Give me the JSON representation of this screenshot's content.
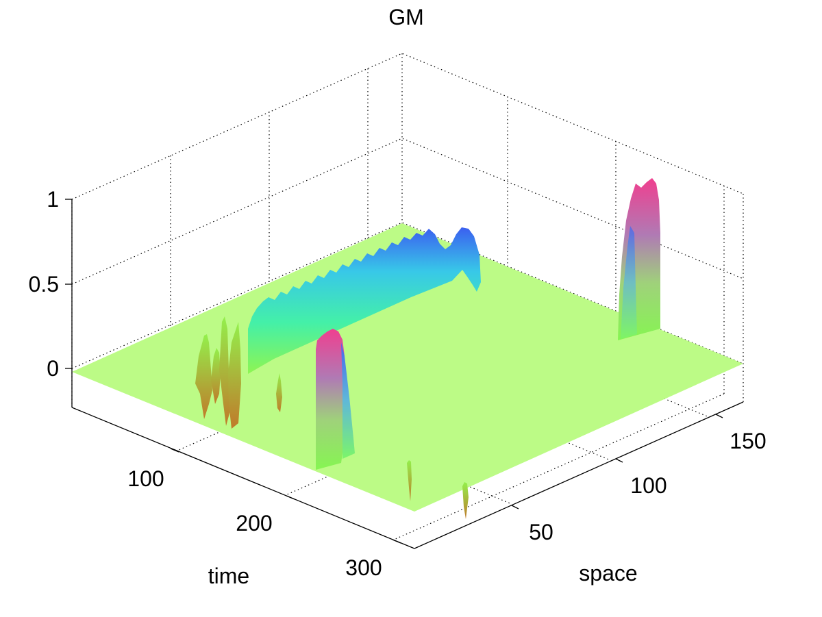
{
  "chart_data": {
    "type": "surface",
    "title": "GM",
    "xlabel": "time",
    "ylabel": "space",
    "zlabel": "",
    "xlim": [
      0,
      340
    ],
    "ylim": [
      0,
      175
    ],
    "zlim": [
      -0.25,
      1
    ],
    "x_ticks": [
      "100",
      "200",
      "300"
    ],
    "y_ticks": [
      "50",
      "100",
      "150"
    ],
    "z_ticks": [
      "0",
      "0.5",
      "1"
    ],
    "grid": true,
    "colormap": "hsv",
    "baseline_color": "#b8f985",
    "features": [
      {
        "name": "ridge",
        "x_range": [
          30,
          32
        ],
        "y_range": [
          60,
          156
        ],
        "peak": 0.77,
        "color_top": "#3b5ff0"
      },
      {
        "name": "bump",
        "x_range": [
          310,
          335
        ],
        "y_range": [
          152,
          156
        ],
        "peak": 0.96,
        "color_top": "#f03f8f"
      },
      {
        "name": "bump",
        "x_range": [
          115,
          147
        ],
        "y_range": [
          60,
          62
        ],
        "peak": 0.9,
        "color_top": "#f03f8f"
      },
      {
        "name": "spikes",
        "x_range": [
          80,
          118
        ],
        "y_range": [
          18,
          40
        ],
        "peak": 0.2,
        "min": -0.35
      },
      {
        "name": "spike",
        "x_range": [
          197,
          199
        ],
        "y_range": [
          56,
          57
        ],
        "peak": 0.1,
        "min": -0.1
      },
      {
        "name": "spike",
        "x_range": [
          262,
          264
        ],
        "y_range": [
          48,
          49
        ],
        "peak": 0.1,
        "min": -0.05
      },
      {
        "name": "spike",
        "x_range": [
          286,
          288
        ],
        "y_range": [
          59,
          60
        ],
        "peak": 0.05,
        "min": -0.25
      }
    ]
  }
}
